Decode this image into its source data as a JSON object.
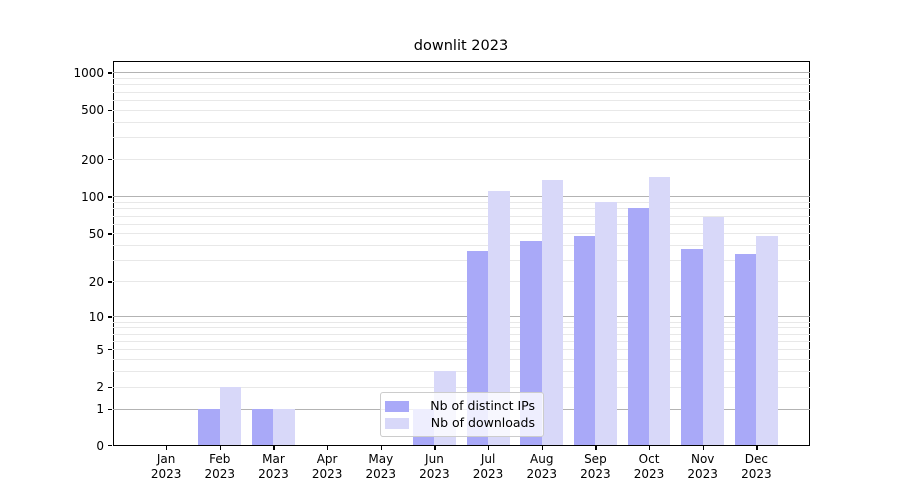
{
  "chart": {
    "title": "downlit 2023"
  },
  "chart_data": {
    "type": "bar",
    "title": "downlit 2023",
    "categories": [
      "Jan\n2023",
      "Feb\n2023",
      "Mar\n2023",
      "Apr\n2023",
      "May\n2023",
      "Jun\n2023",
      "Jul\n2023",
      "Aug\n2023",
      "Sep\n2023",
      "Oct\n2023",
      "Nov\n2023",
      "Dec\n2023"
    ],
    "series": [
      {
        "name": "Nb of distinct IPs",
        "color": "#a9a9f8",
        "values": [
          0,
          1,
          1,
          0,
          0,
          1,
          36,
          43,
          48,
          80,
          37,
          34
        ]
      },
      {
        "name": "Nb of downloads",
        "color": "#d8d8f9",
        "values": [
          0,
          2,
          1,
          0,
          0,
          3,
          110,
          135,
          90,
          145,
          68,
          48
        ]
      }
    ],
    "xlabel": "",
    "ylabel": "",
    "yscale": "log1p",
    "yticks": [
      0,
      1,
      2,
      5,
      10,
      20,
      50,
      100,
      200,
      500,
      1000
    ],
    "ylim": [
      0,
      1200
    ],
    "grid": "on",
    "grid_major_color": "#b3b3b3",
    "grid_minor_color": "#e8e8e8",
    "legend_position": "lower center inside plot",
    "legend_items": [
      "Nb of distinct IPs",
      "Nb of downloads"
    ]
  }
}
